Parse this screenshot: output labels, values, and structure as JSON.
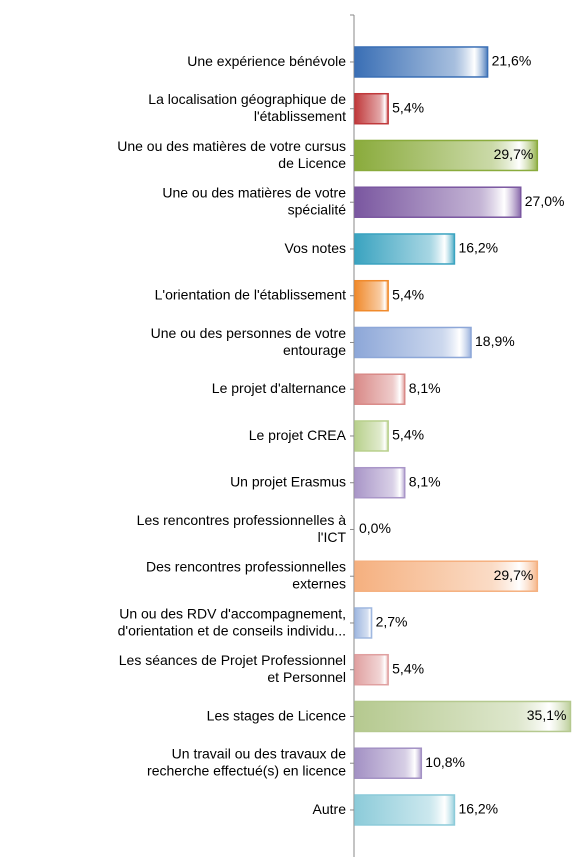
{
  "chart_data": {
    "type": "bar",
    "orientation": "horizontal",
    "categories": [
      [
        "Une expérience bénévole"
      ],
      [
        "La localisation géographique de",
        "l'établissement"
      ],
      [
        "Une ou des matières de votre cursus",
        "de Licence"
      ],
      [
        "Une ou des matières de votre",
        "spécialité"
      ],
      [
        "Vos notes"
      ],
      [
        "L'orientation de l'établissement"
      ],
      [
        "Une ou des personnes de votre",
        "entourage"
      ],
      [
        "Le projet d'alternance"
      ],
      [
        "Le projet CREA"
      ],
      [
        "Un projet Erasmus"
      ],
      [
        "Les rencontres professionnelles à",
        "l'ICT"
      ],
      [
        "Des rencontres professionnelles",
        "externes"
      ],
      [
        "Un ou des RDV d'accompagnement,",
        "d'orientation et de conseils individu..."
      ],
      [
        "Les séances de Projet Professionnel",
        "et Personnel"
      ],
      [
        "Les stages de Licence"
      ],
      [
        "Un travail ou des travaux de",
        "recherche effectué(s) en licence"
      ],
      [
        "Autre"
      ]
    ],
    "values": [
      21.6,
      5.4,
      29.7,
      27.0,
      16.2,
      5.4,
      18.9,
      8.1,
      5.4,
      8.1,
      0.0,
      29.7,
      2.7,
      5.4,
      35.1,
      10.8,
      16.2
    ],
    "value_labels": [
      "21,6%",
      "5,4%",
      "29,7%",
      "27,0%",
      "16,2%",
      "5,4%",
      "18,9%",
      "8,1%",
      "5,4%",
      "8,1%",
      "0,0%",
      "29,7%",
      "2,7%",
      "5,4%",
      "35,1%",
      "10,8%",
      "16,2%"
    ],
    "colors": [
      "#3a6fb5",
      "#c0393b",
      "#8aab3c",
      "#7a57a0",
      "#3aa3c0",
      "#f08a2c",
      "#8da7d8",
      "#d98a88",
      "#b8d08c",
      "#a996c8",
      "#7fc3d5",
      "#f5b07f",
      "#a0b8e0",
      "#e0a0a0",
      "#b5c98f",
      "#a391c4",
      "#8ccbd9"
    ],
    "xlim": [
      0,
      36
    ]
  }
}
